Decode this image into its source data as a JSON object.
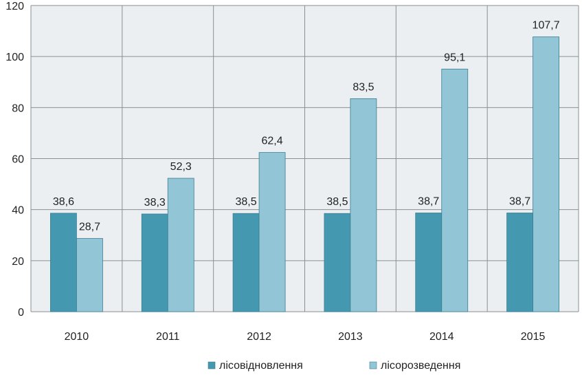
{
  "chart_data": {
    "type": "bar",
    "title": "",
    "xlabel": "",
    "ylabel": "",
    "categories": [
      "2010",
      "2011",
      "2012",
      "2013",
      "2014",
      "2015"
    ],
    "series": [
      {
        "name": "лісовідновлення",
        "color": "#4499b0",
        "values": [
          38.6,
          38.3,
          38.5,
          38.5,
          38.7,
          38.7
        ],
        "value_labels": [
          "38,6",
          "38,3",
          "38,5",
          "38,5",
          "38,7",
          "38,7"
        ]
      },
      {
        "name": "лісорозведення",
        "color": "#92c5d6",
        "values": [
          28.7,
          52.3,
          62.4,
          83.5,
          95.1,
          107.7
        ],
        "value_labels": [
          "28,7",
          "52,3",
          "62,4",
          "83,5",
          "95,1",
          "107,7"
        ]
      }
    ],
    "ylim": [
      0,
      120
    ],
    "yticks": [
      0,
      20,
      40,
      60,
      80,
      100,
      120
    ],
    "grid": true,
    "plot_background": "#ebeff2",
    "legend_position": "bottom"
  }
}
